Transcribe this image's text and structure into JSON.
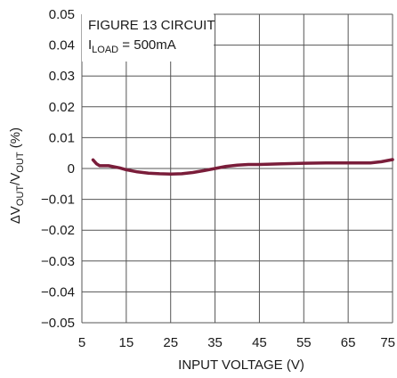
{
  "chart_data": {
    "type": "line",
    "xlabel": "INPUT VOLTAGE (V)",
    "ylabel": {
      "delta": "ΔV",
      "sub1": "OUT",
      "slash": "/V",
      "sub2": "OUT",
      "unit": " (%)"
    },
    "xlim": [
      5,
      75
    ],
    "ylim": [
      -0.05,
      0.05
    ],
    "x_ticks": [
      5,
      15,
      25,
      35,
      45,
      55,
      65,
      75
    ],
    "x_tick_labels": [
      "5",
      "15",
      "25",
      "35",
      "45",
      "55",
      "65",
      "75"
    ],
    "y_ticks": [
      0.05,
      0.04,
      0.03,
      0.02,
      0.01,
      0,
      -0.01,
      -0.02,
      -0.03,
      -0.04,
      -0.05
    ],
    "y_tick_labels": [
      "0.05",
      "0.04",
      "0.03",
      "0.02",
      "0.01",
      "0",
      "−0.01",
      "−0.02",
      "−0.03",
      "−0.04",
      "−0.05"
    ],
    "grid": true,
    "annotation": {
      "line1": "FIGURE 13 CIRCUIT",
      "line2_main": "I",
      "line2_sub": "LOAD",
      "line2_rest": " = 500mA"
    },
    "series": [
      {
        "color": "#7a1d3a",
        "x": [
          7.5,
          8.3,
          9.0,
          10.0,
          11.0,
          12.0,
          13.5,
          15.0,
          17.5,
          20.0,
          22.5,
          25.0,
          27.5,
          30.0,
          32.5,
          35.0,
          37.5,
          40.0,
          42.5,
          45.0,
          50.0,
          55.0,
          60.0,
          65.0,
          70.0,
          72.5,
          75.0
        ],
        "y": [
          0.0028,
          0.0015,
          0.0009,
          0.0009,
          0.0009,
          0.0006,
          0.0002,
          -0.0004,
          -0.0011,
          -0.0015,
          -0.0017,
          -0.0018,
          -0.0017,
          -0.0013,
          -0.0007,
          0.0,
          0.0007,
          0.0011,
          0.0013,
          0.0013,
          0.0015,
          0.0017,
          0.0018,
          0.0018,
          0.0018,
          0.0022,
          0.0029
        ]
      }
    ]
  }
}
